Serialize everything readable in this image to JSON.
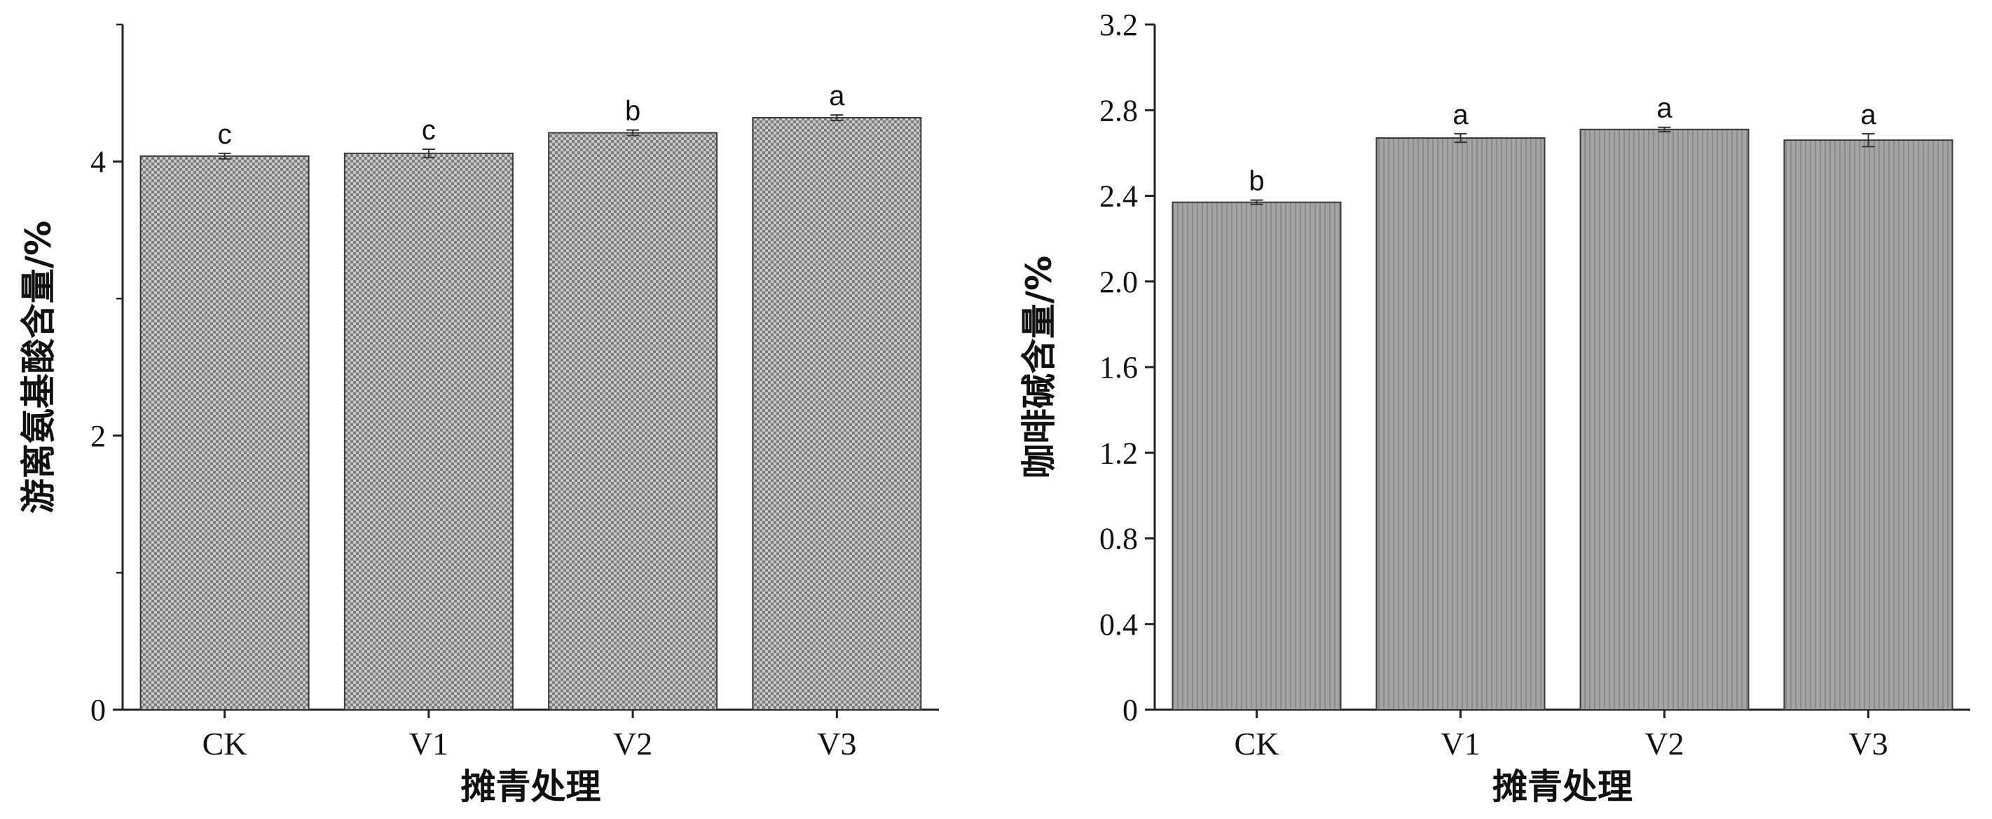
{
  "chart_data": [
    {
      "type": "bar",
      "categories": [
        "CK",
        "V1",
        "V2",
        "V3"
      ],
      "values": [
        4.04,
        4.06,
        4.21,
        4.32
      ],
      "errors": [
        0.02,
        0.03,
        0.02,
        0.02
      ],
      "significance": [
        "c",
        "c",
        "b",
        "a"
      ],
      "xlabel": "摊青处理",
      "ylabel": "游离氨基酸含量/%",
      "ylim": [
        0,
        5
      ],
      "yticks": [
        0,
        2,
        4
      ],
      "yticks_labeled": [
        0,
        2,
        4
      ],
      "bar_color": "#b8b8b8",
      "pattern": "crosshatch"
    },
    {
      "type": "bar",
      "categories": [
        "CK",
        "V1",
        "V2",
        "V3"
      ],
      "values": [
        2.37,
        2.67,
        2.71,
        2.66
      ],
      "errors": [
        0.01,
        0.02,
        0.01,
        0.03
      ],
      "significance": [
        "b",
        "a",
        "a",
        "a"
      ],
      "xlabel": "摊青处理",
      "ylabel": "咖啡碱含量/%",
      "ylim": [
        0,
        3.2
      ],
      "yticks": [
        0,
        0.4,
        0.8,
        1.2,
        1.6,
        2.0,
        2.4,
        2.8,
        3.2
      ],
      "yticks_labeled": [
        "0",
        "0.4",
        "0.8",
        "1.2",
        "1.6",
        "2.0",
        "2.4",
        "2.8",
        "3.2"
      ],
      "bar_color": "#9e9e9e",
      "pattern": "vertical-lines"
    }
  ]
}
